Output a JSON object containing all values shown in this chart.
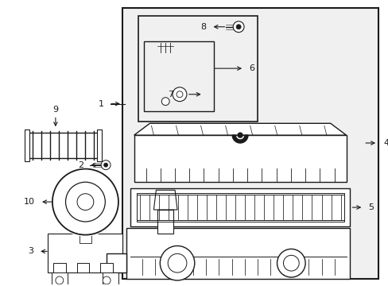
{
  "bg_color": "#ffffff",
  "gray_fill": "#f0f0f0",
  "lc": "#1a1a1a",
  "fig_width": 4.89,
  "fig_height": 3.6,
  "dpi": 100
}
